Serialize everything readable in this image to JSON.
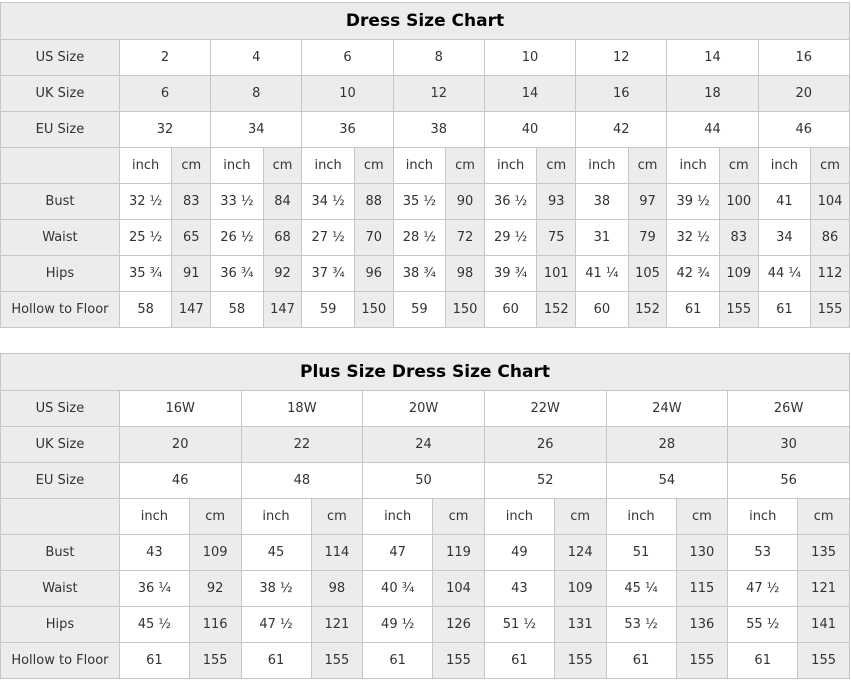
{
  "colors": {
    "cell_shaded": "#ececec",
    "cell_white": "#ffffff",
    "grid_border": "#c6c6c6",
    "text": "#333333",
    "title_text": "#000000"
  },
  "charts": [
    {
      "title": "Dress Size Chart",
      "unit_labels": [
        "inch",
        "cm"
      ],
      "size_rows": [
        {
          "label": "US Size",
          "values": [
            "2",
            "4",
            "6",
            "8",
            "10",
            "12",
            "14",
            "16"
          ]
        },
        {
          "label": "UK Size",
          "values": [
            "6",
            "8",
            "10",
            "12",
            "14",
            "16",
            "18",
            "20"
          ]
        },
        {
          "label": "EU Size",
          "values": [
            "32",
            "34",
            "36",
            "38",
            "40",
            "42",
            "44",
            "46"
          ]
        }
      ],
      "measure_rows": [
        {
          "label": "Bust",
          "inch": [
            "32 ½",
            "33 ½",
            "34 ½",
            "35 ½",
            "36 ½",
            "38",
            "39 ½",
            "41"
          ],
          "cm": [
            "83",
            "84",
            "88",
            "90",
            "93",
            "97",
            "100",
            "104"
          ]
        },
        {
          "label": "Waist",
          "inch": [
            "25 ½",
            "26 ½",
            "27 ½",
            "28 ½",
            "29 ½",
            "31",
            "32 ½",
            "34"
          ],
          "cm": [
            "65",
            "68",
            "70",
            "72",
            "75",
            "79",
            "83",
            "86"
          ]
        },
        {
          "label": "Hips",
          "inch": [
            "35 ¾",
            "36 ¾",
            "37 ¾",
            "38 ¾",
            "39 ¾",
            "41 ¼",
            "42 ¾",
            "44 ¼"
          ],
          "cm": [
            "91",
            "92",
            "96",
            "98",
            "101",
            "105",
            "109",
            "112"
          ]
        },
        {
          "label": "Hollow to Floor",
          "inch": [
            "58",
            "58",
            "59",
            "59",
            "60",
            "60",
            "61",
            "61"
          ],
          "cm": [
            "147",
            "147",
            "150",
            "150",
            "152",
            "152",
            "155",
            "155"
          ]
        }
      ]
    },
    {
      "title": "Plus Size Dress Size Chart",
      "unit_labels": [
        "inch",
        "cm"
      ],
      "size_rows": [
        {
          "label": "US Size",
          "values": [
            "16W",
            "18W",
            "20W",
            "22W",
            "24W",
            "26W"
          ]
        },
        {
          "label": "UK Size",
          "values": [
            "20",
            "22",
            "24",
            "26",
            "28",
            "30"
          ]
        },
        {
          "label": "EU Size",
          "values": [
            "46",
            "48",
            "50",
            "52",
            "54",
            "56"
          ]
        }
      ],
      "measure_rows": [
        {
          "label": "Bust",
          "inch": [
            "43",
            "45",
            "47",
            "49",
            "51",
            "53"
          ],
          "cm": [
            "109",
            "114",
            "119",
            "124",
            "130",
            "135"
          ]
        },
        {
          "label": "Waist",
          "inch": [
            "36 ¼",
            "38 ½",
            "40 ¾",
            "43",
            "45 ¼",
            "47 ½"
          ],
          "cm": [
            "92",
            "98",
            "104",
            "109",
            "115",
            "121"
          ]
        },
        {
          "label": "Hips",
          "inch": [
            "45 ½",
            "47 ½",
            "49 ½",
            "51 ½",
            "53 ½",
            "55 ½"
          ],
          "cm": [
            "116",
            "121",
            "126",
            "131",
            "136",
            "141"
          ]
        },
        {
          "label": "Hollow to Floor",
          "inch": [
            "61",
            "61",
            "61",
            "61",
            "61",
            "61"
          ],
          "cm": [
            "155",
            "155",
            "155",
            "155",
            "155",
            "155"
          ]
        }
      ]
    }
  ]
}
